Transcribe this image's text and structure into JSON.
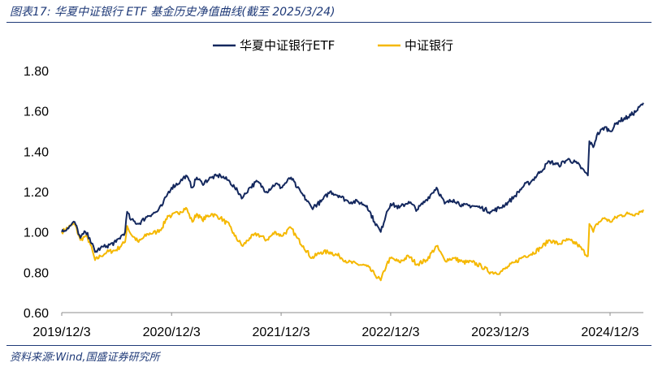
{
  "header": {
    "title": "图表17:  华夏中证银行 ETF 基金历史净值曲线(截至 2025/3/24)"
  },
  "footer": {
    "source": "资料来源:Wind,国盛证券研究所"
  },
  "colors": {
    "etf": "#14285e",
    "index": "#f5b800",
    "rule": "#1f3a78"
  },
  "chart_data": {
    "type": "line",
    "title": "",
    "xlabel": "",
    "ylabel": "",
    "ylim": [
      0.6,
      1.8
    ],
    "yticks": [
      "0.60",
      "0.80",
      "1.00",
      "1.20",
      "1.40",
      "1.60",
      "1.80"
    ],
    "xlim": [
      "2019/12/3",
      "2025/3/24"
    ],
    "xticks": [
      "2019/12/3",
      "2020/12/3",
      "2021/12/3",
      "2022/12/3",
      "2023/12/3",
      "2024/12/3"
    ],
    "grid": false,
    "legend": "top-center",
    "series": [
      {
        "name": "华夏中证银行ETF",
        "x": [
          "2019/12/3",
          "2020/1/1",
          "2020/1/15",
          "2020/2/3",
          "2020/2/20",
          "2020/3/5",
          "2020/3/23",
          "2020/4/10",
          "2020/5/1",
          "2020/6/1",
          "2020/7/1",
          "2020/7/8",
          "2020/7/20",
          "2020/8/15",
          "2020/9/15",
          "2020/10/15",
          "2020/11/1",
          "2020/11/20",
          "2020/12/3",
          "2021/1/1",
          "2021/1/20",
          "2021/2/10",
          "2021/2/25",
          "2021/3/15",
          "2021/4/15",
          "2021/5/15",
          "2021/6/15",
          "2021/7/1",
          "2021/7/28",
          "2021/8/20",
          "2021/9/15",
          "2021/10/15",
          "2021/11/15",
          "2021/12/3",
          "2022/1/5",
          "2022/1/25",
          "2022/2/15",
          "2022/3/15",
          "2022/4/15",
          "2022/5/15",
          "2022/6/15",
          "2022/7/15",
          "2022/8/15",
          "2022/9/15",
          "2022/10/10",
          "2022/10/31",
          "2022/11/20",
          "2022/12/3",
          "2023/1/1",
          "2023/2/1",
          "2023/3/1",
          "2023/4/1",
          "2023/5/5",
          "2023/6/1",
          "2023/7/1",
          "2023/8/1",
          "2023/9/1",
          "2023/10/1",
          "2023/11/1",
          "2023/12/3",
          "2024/1/1",
          "2024/1/22",
          "2024/2/20",
          "2024/3/15",
          "2024/4/15",
          "2024/5/15",
          "2024/6/15",
          "2024/7/15",
          "2024/8/15",
          "2024/9/20",
          "2024/9/25",
          "2024/10/8",
          "2024/10/20",
          "2024/11/15",
          "2024/12/3",
          "2025/1/1",
          "2025/2/1",
          "2025/3/1",
          "2025/3/24"
        ],
        "values": [
          1.0,
          1.03,
          1.05,
          0.97,
          1.0,
          0.97,
          0.9,
          0.92,
          0.93,
          0.95,
          1.0,
          1.1,
          1.06,
          1.04,
          1.08,
          1.1,
          1.13,
          1.19,
          1.22,
          1.25,
          1.28,
          1.22,
          1.27,
          1.24,
          1.27,
          1.28,
          1.25,
          1.22,
          1.17,
          1.22,
          1.25,
          1.2,
          1.24,
          1.22,
          1.27,
          1.22,
          1.18,
          1.12,
          1.15,
          1.2,
          1.18,
          1.15,
          1.15,
          1.13,
          1.05,
          1.0,
          1.1,
          1.14,
          1.12,
          1.15,
          1.11,
          1.16,
          1.22,
          1.14,
          1.16,
          1.13,
          1.13,
          1.12,
          1.1,
          1.12,
          1.15,
          1.18,
          1.23,
          1.25,
          1.3,
          1.35,
          1.33,
          1.36,
          1.34,
          1.28,
          1.45,
          1.42,
          1.48,
          1.52,
          1.5,
          1.55,
          1.57,
          1.6,
          1.64
        ]
      },
      {
        "name": "中证银行",
        "x": [
          "2019/12/3",
          "2020/1/1",
          "2020/1/15",
          "2020/2/3",
          "2020/2/20",
          "2020/3/5",
          "2020/3/23",
          "2020/4/10",
          "2020/5/1",
          "2020/6/1",
          "2020/7/1",
          "2020/7/8",
          "2020/7/20",
          "2020/8/15",
          "2020/9/15",
          "2020/10/15",
          "2020/11/1",
          "2020/11/20",
          "2020/12/3",
          "2021/1/1",
          "2021/1/20",
          "2021/2/10",
          "2021/2/25",
          "2021/3/15",
          "2021/4/15",
          "2021/5/15",
          "2021/6/15",
          "2021/7/1",
          "2021/7/28",
          "2021/8/20",
          "2021/9/15",
          "2021/10/15",
          "2021/11/15",
          "2021/12/3",
          "2022/1/5",
          "2022/1/25",
          "2022/2/15",
          "2022/3/15",
          "2022/4/15",
          "2022/5/15",
          "2022/6/15",
          "2022/7/15",
          "2022/8/15",
          "2022/9/15",
          "2022/10/10",
          "2022/10/31",
          "2022/11/20",
          "2022/12/3",
          "2023/1/1",
          "2023/2/1",
          "2023/3/1",
          "2023/4/1",
          "2023/5/5",
          "2023/6/1",
          "2023/7/1",
          "2023/8/1",
          "2023/9/1",
          "2023/10/1",
          "2023/11/1",
          "2023/12/3",
          "2024/1/1",
          "2024/1/22",
          "2024/2/20",
          "2024/3/15",
          "2024/4/15",
          "2024/5/15",
          "2024/6/15",
          "2024/7/15",
          "2024/8/15",
          "2024/9/20",
          "2024/9/25",
          "2024/10/8",
          "2024/10/20",
          "2024/11/15",
          "2024/12/3",
          "2025/1/1",
          "2025/2/1",
          "2025/3/1",
          "2025/3/24"
        ],
        "values": [
          1.0,
          1.03,
          1.04,
          0.96,
          0.98,
          0.95,
          0.86,
          0.88,
          0.9,
          0.91,
          0.95,
          1.03,
          0.99,
          0.95,
          0.99,
          1.0,
          1.02,
          1.08,
          1.08,
          1.1,
          1.12,
          1.05,
          1.09,
          1.06,
          1.09,
          1.07,
          1.03,
          0.98,
          0.93,
          0.97,
          0.99,
          0.96,
          1.0,
          0.98,
          1.02,
          0.97,
          0.93,
          0.87,
          0.9,
          0.9,
          0.88,
          0.85,
          0.84,
          0.83,
          0.79,
          0.76,
          0.84,
          0.87,
          0.85,
          0.88,
          0.84,
          0.86,
          0.93,
          0.86,
          0.87,
          0.85,
          0.85,
          0.83,
          0.8,
          0.8,
          0.83,
          0.85,
          0.88,
          0.89,
          0.92,
          0.96,
          0.94,
          0.96,
          0.94,
          0.88,
          1.04,
          1.0,
          1.04,
          1.07,
          1.05,
          1.08,
          1.09,
          1.09,
          1.11
        ]
      }
    ]
  }
}
